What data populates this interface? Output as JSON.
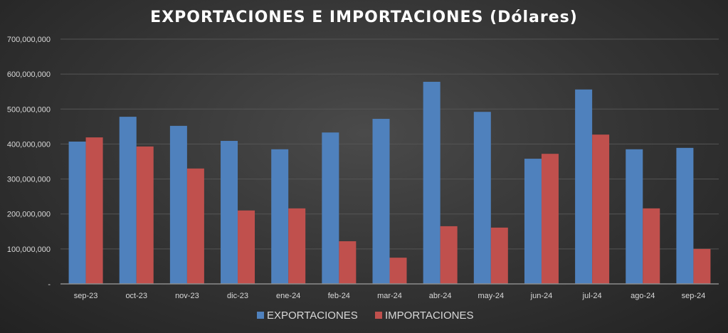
{
  "chart_data": {
    "type": "bar",
    "title": "EXPORTACIONES E IMPORTACIONES (Dólares)",
    "xlabel": "",
    "ylabel": "",
    "ylim": [
      0,
      700000000
    ],
    "yticks": [
      0,
      100000000,
      200000000,
      300000000,
      400000000,
      500000000,
      600000000,
      700000000
    ],
    "ytick_labels": [
      "-",
      "100,000,000",
      "200,000,000",
      "300,000,000",
      "400,000,000",
      "500,000,000",
      "600,000,000",
      "700,000,000"
    ],
    "grid": true,
    "legend_position": "bottom",
    "categories": [
      "sep-23",
      "oct-23",
      "nov-23",
      "dic-23",
      "ene-24",
      "feb-24",
      "mar-24",
      "abr-24",
      "may-24",
      "jun-24",
      "jul-24",
      "ago-24",
      "sep-24"
    ],
    "series": [
      {
        "name": "EXPORTACIONES",
        "color": "#4f81bd",
        "values": [
          407000000,
          478000000,
          452000000,
          409000000,
          385000000,
          433000000,
          472000000,
          578000000,
          492000000,
          358000000,
          556000000,
          385000000,
          389000000
        ]
      },
      {
        "name": "IMPORTACIONES",
        "color": "#c0504d",
        "values": [
          419000000,
          393000000,
          330000000,
          210000000,
          216000000,
          122000000,
          75000000,
          165000000,
          161000000,
          372000000,
          427000000,
          216000000,
          100000000
        ]
      }
    ]
  }
}
